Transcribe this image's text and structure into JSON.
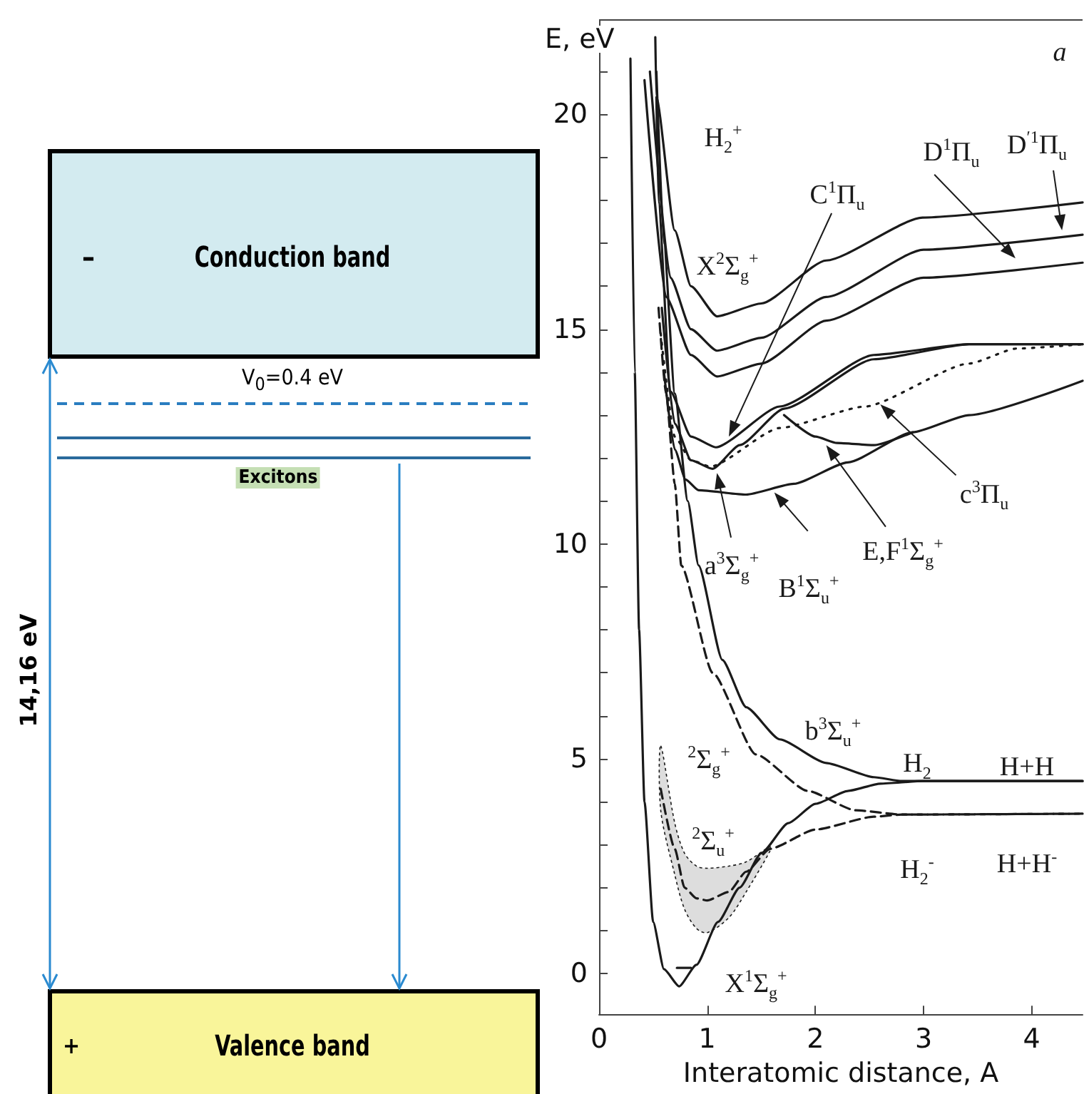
{
  "chart_data": [
    {
      "type": "other",
      "annotations": [
        "Conduction band",
        "–",
        "V$_{0}$=0.4 eV",
        "Excitons",
        "14,16 eV",
        "Valence band",
        "+"
      ]
    },
    {
      "type": "line",
      "xlabel": "Interatomic distance, A",
      "ylabel": "E, eV",
      "xlim": [
        0,
        4.47
      ],
      "ylim": [
        -0.95,
        22.2
      ],
      "xticks": [
        0,
        1,
        2,
        3,
        4
      ],
      "yticks": [
        0,
        {
          "value": 1,
          "label": null
        },
        {
          "value": 2,
          "label": null
        },
        {
          "value": 3,
          "label": null
        },
        {
          "value": 4,
          "label": null
        },
        5,
        {
          "value": 6,
          "label": null
        },
        {
          "value": 7,
          "label": null
        },
        {
          "value": 8,
          "label": null
        },
        {
          "value": 9,
          "label": null
        },
        10,
        {
          "value": 11,
          "label": null
        },
        {
          "value": 12,
          "label": null
        },
        {
          "value": 13,
          "label": null
        },
        {
          "value": 14,
          "label": null
        },
        15,
        {
          "value": 16,
          "label": null
        },
        {
          "value": 17,
          "label": null
        },
        {
          "value": 18,
          "label": null
        },
        {
          "value": 19,
          "label": null
        },
        20,
        {
          "value": 21,
          "label": null
        },
        {
          "value": 22,
          "label": null
        }
      ],
      "marker": "none",
      "series": [
        {
          "color": "#1a1a1a",
          "line_style": "solid",
          "x": [
            0.29,
            0.33,
            0.37,
            0.42,
            0.5,
            0.6,
            0.74,
            0.9,
            1.1,
            1.3,
            1.5,
            1.75,
            2.0,
            2.3,
            2.6,
            3.0,
            4.47
          ],
          "values": [
            21.3,
            14,
            8,
            4,
            1.2,
            0.1,
            -0.3,
            0.2,
            1.2,
            2.0,
            2.8,
            3.5,
            3.95,
            4.25,
            4.42,
            4.48,
            4.48
          ]
        },
        {
          "color": "#1a1a1a",
          "line_style": "solid",
          "x": [
            0.72,
            0.85
          ],
          "values": [
            0.13,
            0.13
          ]
        },
        {
          "color": "#1a1a1a",
          "line_style": "solid",
          "x": [
            0.53,
            0.6,
            0.7,
            0.82,
            0.92,
            1.14,
            1.36,
            1.67,
            2.1,
            2.54,
            2.8,
            4.47
          ],
          "values": [
            21,
            17,
            13.5,
            11,
            9.5,
            7.3,
            6.2,
            5.45,
            4.9,
            4.57,
            4.48,
            4.48
          ]
        },
        {
          "color": "#1a1a1a",
          "line_style": "dashed",
          "x": [
            0.55,
            0.62,
            0.7,
            0.76,
            1.05,
            1.45,
            1.93,
            2.37,
            2.8,
            4.47
          ],
          "values": [
            15.5,
            13.5,
            11.4,
            9.5,
            7,
            5.1,
            4.25,
            3.8,
            3.7,
            3.72
          ]
        },
        {
          "color": "#1a1a1a",
          "line_style": "dashed",
          "x": [
            0.57,
            0.7,
            0.79,
            0.9,
            1.0,
            1.2,
            1.36,
            1.58,
            2.0,
            2.54,
            2.8,
            4.47
          ],
          "values": [
            4.3,
            2.9,
            2.0,
            1.75,
            1.7,
            1.9,
            2.37,
            2.9,
            3.35,
            3.65,
            3.7,
            3.72
          ],
          "lower": [
            3.8,
            2.3,
            1.5,
            1.05,
            0.95,
            1.3,
            1.9,
            2.85,
            null,
            null,
            null,
            null
          ],
          "upper": [
            5.3,
            3.5,
            2.8,
            2.5,
            2.45,
            2.5,
            2.6,
            2.95,
            null,
            null,
            null,
            null
          ]
        },
        {
          "color": "#1a1a1a",
          "line_style": "solid",
          "x": [
            0.52,
            0.53,
            0.7,
            0.85,
            1.09,
            1.5,
            2.1,
            2.99,
            4.47
          ],
          "values": [
            21.8,
            20.4,
            17.3,
            16.0,
            15.3,
            15.6,
            16.6,
            17.6,
            17.95
          ]
        },
        {
          "color": "#1a1a1a",
          "line_style": "solid",
          "x": [
            0.47,
            0.66,
            0.85,
            1.09,
            1.5,
            2.1,
            3.0,
            4.47
          ],
          "values": [
            21,
            16.2,
            15.0,
            14.5,
            14.8,
            15.75,
            16.85,
            17.2
          ]
        },
        {
          "color": "#1a1a1a",
          "line_style": "solid",
          "x": [
            0.42,
            0.62,
            0.85,
            1.09,
            1.5,
            2.1,
            3.0,
            4.47
          ],
          "values": [
            20.8,
            15.75,
            14.4,
            13.9,
            14.2,
            15.2,
            16.2,
            16.55
          ]
        },
        {
          "color": "#1a1a1a",
          "line_style": "solid",
          "x": [
            0.53,
            0.55,
            0.66,
            0.85,
            1.08,
            1.67,
            2.54,
            3.42,
            4.47
          ],
          "values": [
            20.4,
            17.95,
            13.55,
            12.5,
            12.25,
            13.2,
            14.4,
            14.65,
            14.65
          ]
        },
        {
          "color": "#1a1a1a",
          "line_style": "solid",
          "x": [
            0.58,
            0.7,
            0.85,
            1.05,
            1.3,
            1.71,
            2.54,
            3.42,
            4.47
          ],
          "values": [
            15.5,
            12.8,
            11.95,
            11.75,
            12.3,
            13.15,
            14.3,
            14.65,
            14.65
          ]
        },
        {
          "color": "#1a1a1a",
          "line_style": "solid",
          "x": [
            1.71,
            2.0,
            2.2,
            2.54,
            2.9
          ],
          "values": [
            13.0,
            12.5,
            12.35,
            12.3,
            12.6
          ]
        },
        {
          "color": "#1a1a1a",
          "line_style": "solid",
          "x": [
            0.6,
            0.7,
            0.8,
            0.92,
            1.36,
            1.8,
            2.3,
            2.9,
            3.42,
            4.47
          ],
          "values": [
            14,
            12.2,
            11.5,
            11.25,
            11.15,
            11.4,
            11.9,
            12.6,
            13.0,
            13.8
          ]
        },
        {
          "color": "#1a1a1a",
          "line_style": "dotted",
          "x": [
            0.57,
            0.7,
            0.85,
            1.03,
            1.67,
            2.46,
            3.42,
            3.86,
            4.47
          ],
          "values": [
            14.9,
            12.5,
            11.95,
            11.8,
            12.7,
            13.2,
            14.2,
            14.55,
            14.65
          ]
        }
      ],
      "annotations": [
        "a",
        "H$_{2}$$^{+}$",
        "X$^{2}$Σ$_{g}$$^{+}$",
        "C$^{1}$Π$_{u}$",
        "D$^{1}$Π$_{u}$",
        "D$^{′1}$Π$_{u}$",
        "c$^{3}$Π$_{u}$",
        "E,F$^{1}$Σ$_{g}$$^{+}$",
        "a$^{3}$Σ$_{g}$$^{+}$",
        "B$^{1}$Σ$_{u}$$^{+}$",
        "b$^{3}$Σ$_{u}$$^{+}$",
        "$^{2}$Σ$_{g}$$^{+}$",
        "$^{2}$Σ$_{u}$$^{+}$",
        "H$_{2}$",
        "H+H",
        "H$_{2}$$^{-}$",
        "H+H$^{-}$",
        "X$^{1}$Σ$_{g}$$^{+}$"
      ]
    }
  ]
}
